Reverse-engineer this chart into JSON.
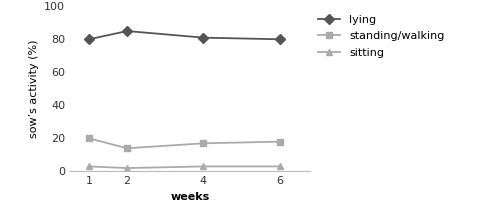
{
  "weeks": [
    1,
    2,
    4,
    6
  ],
  "lying": [
    80,
    85,
    81,
    80
  ],
  "standing_walking": [
    20,
    14,
    17,
    18
  ],
  "sitting": [
    3,
    2,
    3,
    3
  ],
  "ylim": [
    0,
    100
  ],
  "yticks": [
    0,
    20,
    40,
    60,
    80,
    100
  ],
  "xticks": [
    1,
    2,
    4,
    6
  ],
  "xlabel": "weeks",
  "ylabel": "sow’s activity (%)",
  "legend_labels": [
    "lying",
    "standing/walking",
    "sitting"
  ],
  "color_lying": "#555555",
  "color_standing": "#aaaaaa",
  "color_sitting": "#aaaaaa",
  "marker_lying": "D",
  "marker_standing": "s",
  "marker_sitting": "^",
  "linewidth": 1.3,
  "markersize": 5,
  "background_color": "#ffffff",
  "spine_color": "#bbbbbb",
  "tick_color": "#333333",
  "label_fontsize": 8,
  "tick_fontsize": 8,
  "legend_fontsize": 8
}
